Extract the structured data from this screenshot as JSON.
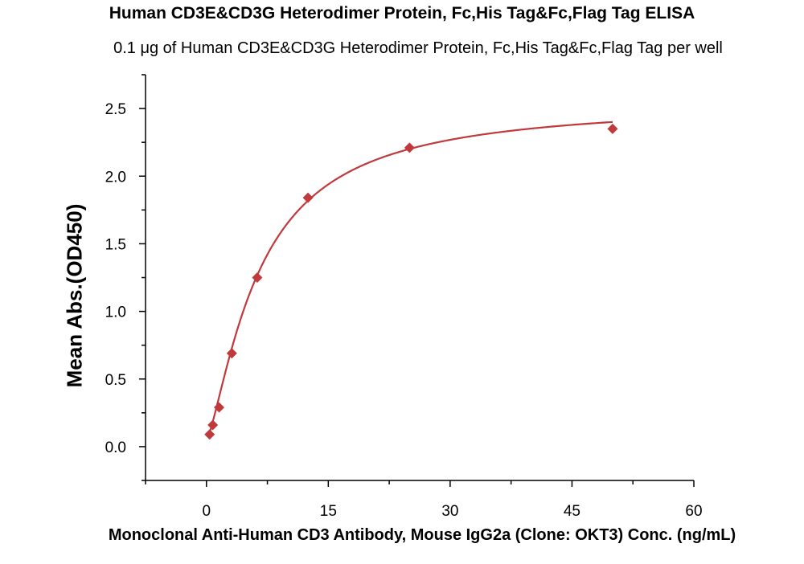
{
  "chart_data": {
    "type": "scatter",
    "title": "Human CD3E&CD3G Heterodimer Protein, Fc,His Tag&Fc,Flag Tag ELISA",
    "subtitle": "0.1 μg of Human CD3E&CD3G Heterodimer Protein, Fc,His Tag&Fc,Flag Tag per well",
    "xlabel": "Monoclonal Anti-Human CD3 Antibody, Mouse IgG2a (Clone: OKT3) Conc. (ng/mL)",
    "ylabel": "Mean Abs.(OD450)",
    "xlim": [
      -7.5,
      60
    ],
    "ylim": [
      -0.25,
      2.75
    ],
    "x_ticks": [
      0,
      15,
      30,
      45,
      60
    ],
    "y_ticks": [
      0.0,
      0.5,
      1.0,
      1.5,
      2.0,
      2.5
    ],
    "x_tick_labels": [
      "0",
      "15",
      "30",
      "45",
      "60"
    ],
    "y_tick_labels": [
      "0.0",
      "0.5",
      "1.0",
      "1.5",
      "2.0",
      "2.5"
    ],
    "grid": false,
    "series": [
      {
        "marker": "diamond",
        "color": "#c0393b",
        "x": [
          0.39,
          0.78,
          1.56,
          3.125,
          6.25,
          12.5,
          25,
          50
        ],
        "y": [
          0.09,
          0.16,
          0.29,
          0.69,
          1.25,
          1.84,
          2.21,
          2.35
        ]
      }
    ],
    "fit_curve": {
      "color": "#c0393b",
      "type": "4PL"
    }
  }
}
